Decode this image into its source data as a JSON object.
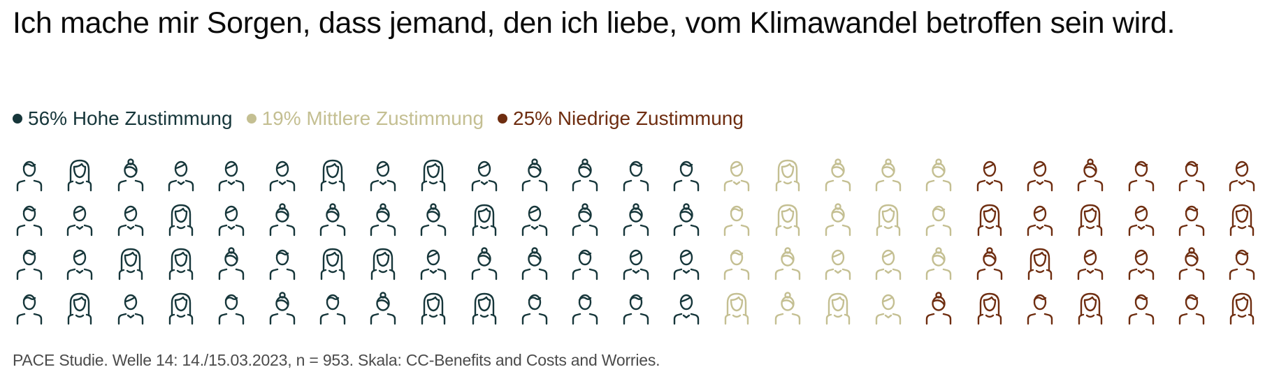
{
  "title": "Ich mache mir Sorgen, dass jemand, den ich liebe, vom Klimawandel betroffen sein wird.",
  "legend": [
    {
      "label": "56% Hohe Zustimmung",
      "color": "#16363a"
    },
    {
      "label": "19% Mittlere Zustimmung",
      "color": "#c4bf92"
    },
    {
      "label": "25% Niedrige Zustimmung",
      "color": "#6e2d10"
    }
  ],
  "footnote": "PACE Studie. Welle 14: 14./15.03.2023, n = 953. Skala: CC-Benefits and Costs and Worries.",
  "icon_types": {
    "A": "person-male-icon",
    "B": "person-male-vneck-icon",
    "C": "person-female-long-hair-icon",
    "D": "person-female-bun-icon"
  },
  "grid": {
    "columns": 25,
    "rows": 4,
    "column_types": [
      [
        "A",
        "A",
        "A",
        "A"
      ],
      [
        "C",
        "B",
        "B",
        "C"
      ],
      [
        "D",
        "B",
        "C",
        "B"
      ],
      [
        "B",
        "C",
        "C",
        "C"
      ],
      [
        "B",
        "B",
        "D",
        "A"
      ],
      [
        "B",
        "D",
        "A",
        "D"
      ],
      [
        "C",
        "D",
        "C",
        "A"
      ],
      [
        "B",
        "D",
        "C",
        "D"
      ],
      [
        "C",
        "D",
        "B",
        "C"
      ],
      [
        "B",
        "C",
        "D",
        "C"
      ],
      [
        "D",
        "B",
        "D",
        "A"
      ],
      [
        "D",
        "D",
        "A",
        "A"
      ],
      [
        "A",
        "D",
        "B",
        "A"
      ],
      [
        "A",
        "D",
        "B",
        "B"
      ],
      [
        "B",
        "A",
        "A",
        "C"
      ],
      [
        "C",
        "C",
        "D",
        "D"
      ],
      [
        "D",
        "D",
        "B",
        "C"
      ],
      [
        "D",
        "C",
        "B",
        "B"
      ],
      [
        "D",
        "A",
        "D",
        "D"
      ],
      [
        "B",
        "C",
        "D",
        "C"
      ],
      [
        "B",
        "B",
        "C",
        "A"
      ],
      [
        "D",
        "C",
        "B",
        "C"
      ],
      [
        "A",
        "B",
        "B",
        "A"
      ],
      [
        "A",
        "A",
        "D",
        "A"
      ],
      [
        "B",
        "C",
        "A",
        "C"
      ]
    ],
    "column_category": [
      0,
      0,
      0,
      0,
      0,
      0,
      0,
      0,
      0,
      0,
      0,
      0,
      0,
      0,
      1,
      1,
      1,
      1,
      1,
      2,
      2,
      2,
      2,
      2,
      2
    ],
    "exceptions": [
      {
        "col": 18,
        "row": 3,
        "category": 2
      }
    ]
  },
  "chart_data": {
    "type": "pictogram",
    "title": "Ich mache mir Sorgen, dass jemand, den ich liebe, vom Klimawandel betroffen sein wird.",
    "categories": [
      "Hohe Zustimmung",
      "Mittlere Zustimmung",
      "Niedrige Zustimmung"
    ],
    "values": [
      56,
      19,
      25
    ],
    "unit": "%",
    "icons_total": 100,
    "layout": "4 rows x 25 columns, filled column-wise",
    "colors": [
      "#16363a",
      "#c4bf92",
      "#6e2d10"
    ],
    "legend_position": "top",
    "source": "PACE Studie. Welle 14: 14./15.03.2023, n = 953. Skala: CC-Benefits and Costs and Worries."
  }
}
